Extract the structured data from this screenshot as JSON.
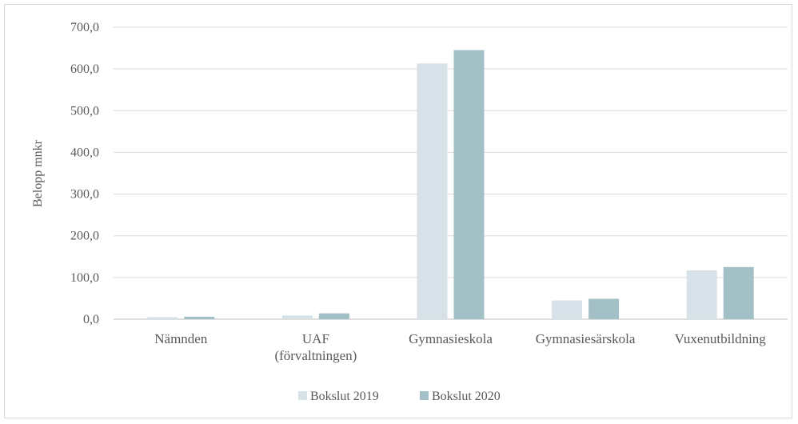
{
  "chart_data": {
    "type": "bar",
    "title": "",
    "xlabel": "",
    "ylabel": "Belopp mnkr",
    "ylim": [
      0,
      700
    ],
    "yticks": [
      "0,0",
      "100,0",
      "200,0",
      "300,0",
      "400,0",
      "500,0",
      "600,0",
      "700,0"
    ],
    "ytick_values": [
      0,
      100,
      200,
      300,
      400,
      500,
      600,
      700
    ],
    "categories": [
      [
        "Nämnden"
      ],
      [
        "UAF",
        "(förvaltningen)"
      ],
      [
        "Gymnasieskola"
      ],
      [
        "Gymnasiesärskola"
      ],
      [
        "Vuxenutbildning"
      ]
    ],
    "series": [
      {
        "name": "Bokslut 2019",
        "color": "#d6e2e7",
        "values": [
          5,
          9,
          613,
          45,
          117
        ]
      },
      {
        "name": "Bokslut 2020",
        "color": "#a3c0c6",
        "values": [
          6,
          14,
          645,
          49,
          125
        ]
      }
    ],
    "grid": true,
    "legend_position": "bottom",
    "gridline_color": "#d9d9d9",
    "axis_color": "#bfbfbf"
  }
}
